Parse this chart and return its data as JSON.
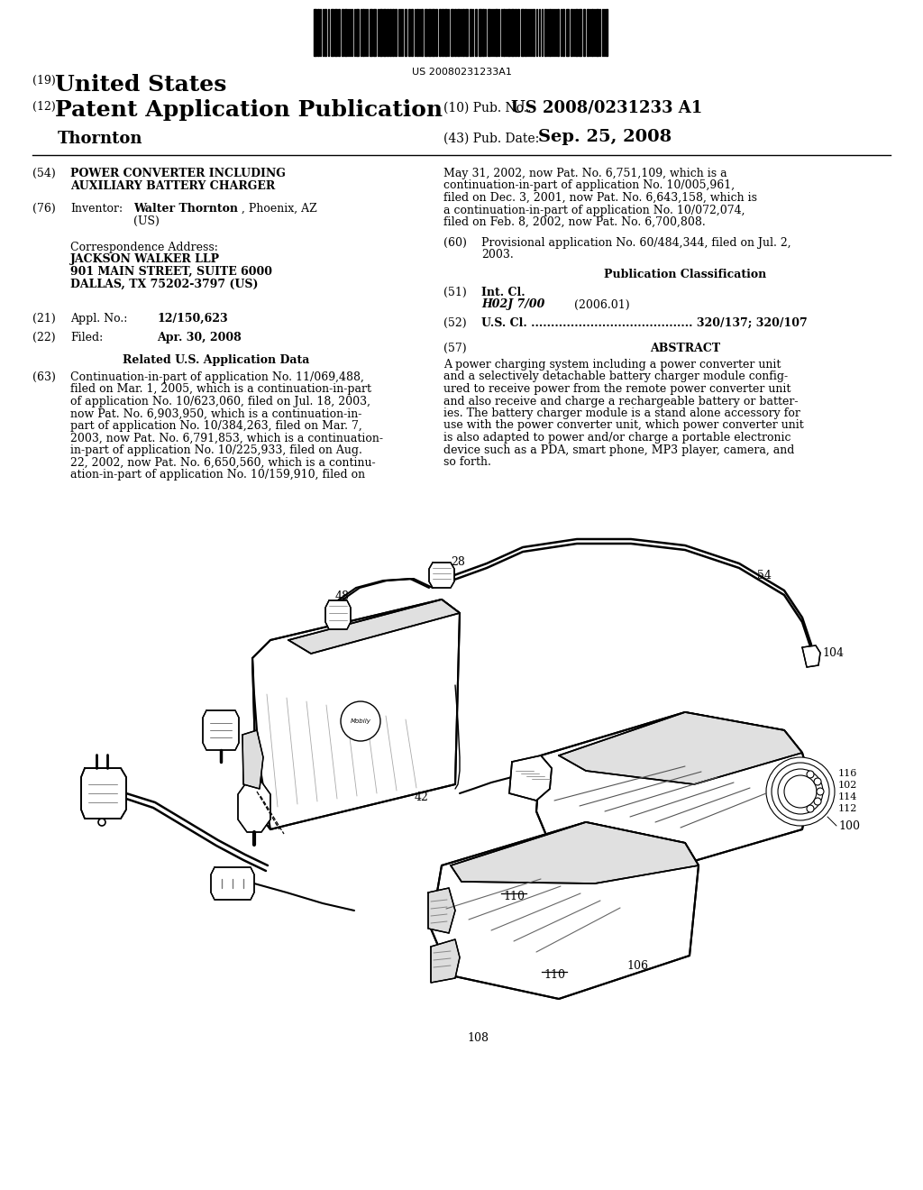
{
  "bg_color": "#ffffff",
  "barcode_text": "US 20080231233A1",
  "pub_no_label": "(10) Pub. No.:",
  "pub_no_value": "US 2008/0231233 A1",
  "pub_date_label": "(43) Pub. Date:",
  "pub_date_value": "Sep. 25, 2008",
  "title19_prefix": "(19)",
  "title19_main": "United States",
  "title12_prefix": "(12)",
  "title12_main": "Patent Application Publication",
  "inventor_header": "Thornton",
  "field54_label": "(54)",
  "field54_line1": "POWER CONVERTER INCLUDING",
  "field54_line2": "AUXILIARY BATTERY CHARGER",
  "field76_label": "(76)",
  "field76_pre": "Inventor:",
  "field76_name": "Walter Thornton",
  "field76_rest": ", Phoenix, AZ",
  "field76_us": "(US)",
  "corr_title": "Correspondence Address:",
  "corr1": "JACKSON WALKER LLP",
  "corr2": "901 MAIN STREET, SUITE 6000",
  "corr3": "DALLAS, TX 75202-3797 (US)",
  "f21_label": "(21)",
  "f21_pre": "Appl. No.:",
  "f21_val": "12/150,623",
  "f22_label": "(22)",
  "f22_pre": "Filed:",
  "f22_val": "Apr. 30, 2008",
  "related_hdr": "Related U.S. Application Data",
  "f63_label": "(63)",
  "f63_lines": [
    "Continuation-in-part of application No. 11/069,488,",
    "filed on Mar. 1, 2005, which is a continuation-in-part",
    "of application No. 10/623,060, filed on Jul. 18, 2003,",
    "now Pat. No. 6,903,950, which is a continuation-in-",
    "part of application No. 10/384,263, filed on Mar. 7,",
    "2003, now Pat. No. 6,791,853, which is a continuation-",
    "in-part of application No. 10/225,933, filed on Aug.",
    "22, 2002, now Pat. No. 6,650,560, which is a continu-",
    "ation-in-part of application No. 10/159,910, filed on"
  ],
  "r_cont_lines": [
    "May 31, 2002, now Pat. No. 6,751,109, which is a",
    "continuation-in-part of application No. 10/005,961,",
    "filed on Dec. 3, 2001, now Pat. No. 6,643,158, which is",
    "a continuation-in-part of application No. 10/072,074,",
    "filed on Feb. 8, 2002, now Pat. No. 6,700,808."
  ],
  "f60_label": "(60)",
  "f60_line1": "Provisional application No. 60/484,344, filed on Jul. 2,",
  "f60_line2": "2003.",
  "pubclass_hdr": "Publication Classification",
  "f51_label": "(51)",
  "f51_pre": "Int. Cl.",
  "f51_class": "H02J 7/00",
  "f51_year": "(2006.01)",
  "f52_label": "(52)",
  "f52_text": "U.S. Cl. ......................................... 320/137; 320/107",
  "f57_label": "(57)",
  "f57_hdr": "ABSTRACT",
  "f57_lines": [
    "A power charging system including a power converter unit",
    "and a selectively detachable battery charger module config-",
    "ured to receive power from the remote power converter unit",
    "and also receive and charge a rechargeable battery or batter-",
    "ies. The battery charger module is a stand alone accessory for",
    "use with the power converter unit, which power converter unit",
    "is also adapted to power and/or charge a portable electronic",
    "device such as a PDA, smart phone, MP3 player, camera, and",
    "so forth."
  ],
  "lh": 13.5,
  "C1": 36,
  "C2": 492,
  "mid_C1": 240,
  "mid_C2": 760
}
